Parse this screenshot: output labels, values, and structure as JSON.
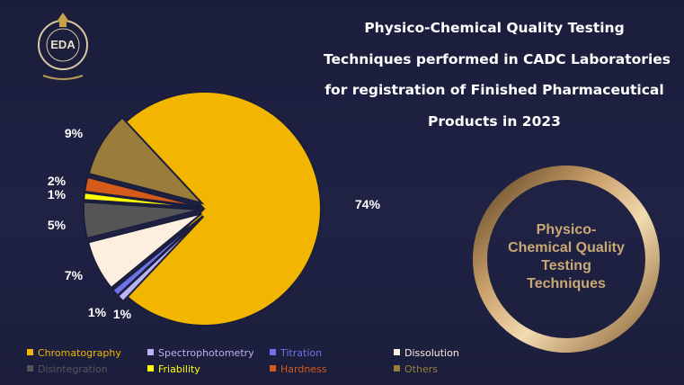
{
  "header": {
    "title_lines": [
      "Physico-Chemical Quality Testing",
      "Techniques performed in CADC Laboratories",
      "for registration of Finished Pharmaceutical",
      "Products in 2023"
    ],
    "logo_text": "EDA"
  },
  "ring": {
    "lines": [
      "Physico-",
      "Chemical Quality",
      "Testing",
      "Techniques"
    ]
  },
  "chart_data": {
    "type": "pie",
    "title": "Physico-Chemical Quality Testing Techniques performed in CADC Laboratories for registration of Finished Pharmaceutical Products in 2023",
    "exploded": true,
    "legend_position": "bottom",
    "slices": [
      {
        "label": "Chromatography",
        "value": 74,
        "display": "74%",
        "color": "#f2b600"
      },
      {
        "label": "Spectrophotometry",
        "value": 1,
        "display": "1%",
        "color": "#b9b3ef"
      },
      {
        "label": "Titration",
        "value": 1,
        "display": "1%",
        "color": "#6d73e6"
      },
      {
        "label": "Dissolution",
        "value": 7,
        "display": "7%",
        "color": "#fcefe0"
      },
      {
        "label": "Disintegration",
        "value": 5,
        "display": "5%",
        "color": "#555558"
      },
      {
        "label": "Friability",
        "value": 1,
        "display": "1%",
        "color": "#ffff00"
      },
      {
        "label": "Hardness",
        "value": 2,
        "display": "2%",
        "color": "#d65a1a"
      },
      {
        "label": "Others",
        "value": 9,
        "display": "9%",
        "color": "#9a7c3b"
      }
    ]
  },
  "colors": {
    "background": "#1b1d3c",
    "title_text": "#ffffff",
    "ring_gold": "#c9a974"
  }
}
